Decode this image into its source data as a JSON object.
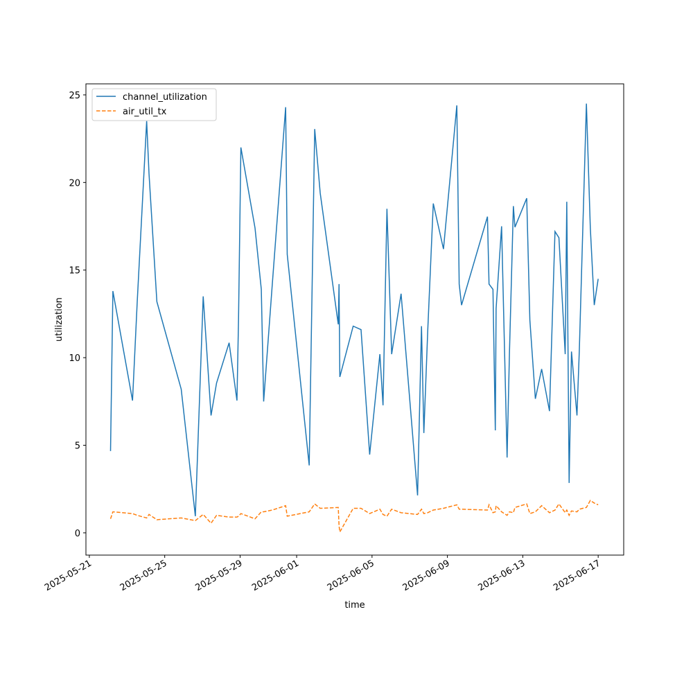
{
  "chart_data": {
    "type": "line",
    "x_label": "time",
    "y_label": "utilization",
    "x": [
      "2025-05-22T03:00",
      "2025-05-22T06:00",
      "2025-05-23T07:00",
      "2025-05-23T13:00",
      "2025-05-24T01:00",
      "2025-05-24T04:00",
      "2025-05-24T14:00",
      "2025-05-25T21:00",
      "2025-05-26T15:00",
      "2025-05-27T01:00",
      "2025-05-27T11:00",
      "2025-05-27T18:00",
      "2025-05-28T10:00",
      "2025-05-28T20:00",
      "2025-05-28T22:00",
      "2025-05-29T01:00",
      "2025-05-29T19:00",
      "2025-05-30T03:00",
      "2025-05-30T06:00",
      "2025-05-30T17:00",
      "2025-05-31T10:00",
      "2025-05-31T12:00",
      "2025-06-01T16:00",
      "2025-06-01T23:00",
      "2025-06-02T06:00",
      "2025-06-03T05:00",
      "2025-06-03T06:00",
      "2025-06-03T07:00",
      "2025-06-04T00:00",
      "2025-06-04T10:00",
      "2025-06-04T21:00",
      "2025-06-05T10:00",
      "2025-06-05T14:00",
      "2025-06-05T19:00",
      "2025-06-06T01:00",
      "2025-06-06T13:00",
      "2025-06-07T10:00",
      "2025-06-07T15:00",
      "2025-06-07T18:00",
      "2025-06-07T23:00",
      "2025-06-08T06:00",
      "2025-06-08T19:00",
      "2025-06-09T12:00",
      "2025-06-09T15:00",
      "2025-06-09T18:00",
      "2025-06-11T03:00",
      "2025-06-11T05:00",
      "2025-06-11T10:00",
      "2025-06-11T13:00",
      "2025-06-11T14:00",
      "2025-06-11T21:00",
      "2025-06-12T04:00",
      "2025-06-12T07:00",
      "2025-06-12T12:00",
      "2025-06-12T14:00",
      "2025-06-13T05:00",
      "2025-06-13T09:00",
      "2025-06-13T16:00",
      "2025-06-14T00:00",
      "2025-06-14T10:00",
      "2025-06-14T17:00",
      "2025-06-14T22:00",
      "2025-06-15T06:00",
      "2025-06-15T08:00",
      "2025-06-15T11:00",
      "2025-06-15T14:00",
      "2025-06-15T21:00",
      "2025-06-16T00:00",
      "2025-06-16T09:00",
      "2025-06-16T14:00",
      "2025-06-16T19:00",
      "2025-06-17T00:00"
    ],
    "series": [
      {
        "name": "channel_utilization",
        "color": "#1f77b4",
        "linestyle": "solid",
        "values": [
          4.67,
          13.8,
          7.55,
          13.2,
          23.5,
          20.5,
          13.2,
          8.2,
          0.95,
          13.5,
          6.7,
          8.55,
          10.85,
          7.55,
          12.2,
          22.0,
          17.4,
          13.9,
          7.5,
          14.2,
          24.3,
          15.9,
          3.85,
          23.05,
          19.4,
          11.9,
          14.2,
          8.9,
          11.8,
          11.6,
          4.47,
          10.2,
          7.28,
          18.5,
          10.2,
          13.65,
          2.14,
          11.8,
          5.7,
          11.6,
          18.8,
          16.2,
          24.4,
          14.2,
          13.0,
          18.05,
          14.2,
          13.9,
          5.85,
          12.8,
          17.5,
          4.3,
          10.25,
          18.65,
          17.45,
          19.1,
          12.15,
          7.65,
          9.35,
          6.95,
          17.2,
          16.85,
          10.2,
          18.9,
          2.85,
          10.35,
          6.7,
          10.45,
          24.5,
          17.4,
          13.0,
          14.5
        ]
      },
      {
        "name": "air_util_tx",
        "color": "#ff7f0e",
        "linestyle": "dashed",
        "values": [
          0.8,
          1.2,
          1.1,
          1.0,
          0.85,
          1.05,
          0.75,
          0.85,
          0.7,
          1.05,
          0.55,
          1.0,
          0.9,
          0.9,
          0.95,
          1.1,
          0.8,
          1.2,
          1.2,
          1.3,
          1.55,
          0.95,
          1.2,
          1.65,
          1.4,
          1.45,
          0.4,
          0.05,
          1.4,
          1.4,
          1.1,
          1.35,
          1.05,
          0.95,
          1.35,
          1.15,
          1.05,
          1.35,
          1.1,
          1.15,
          1.3,
          1.4,
          1.6,
          1.35,
          1.35,
          1.3,
          1.6,
          1.15,
          1.2,
          1.55,
          1.2,
          1.0,
          1.2,
          1.15,
          1.45,
          1.65,
          1.1,
          1.2,
          1.55,
          1.15,
          1.3,
          1.65,
          1.15,
          1.3,
          1.0,
          1.25,
          1.2,
          1.35,
          1.45,
          1.85,
          1.7,
          1.6
        ]
      }
    ],
    "xlim": [
      "2025-05-20T19:40",
      "2025-06-18T08:30"
    ],
    "xticks": [
      "2025-05-21",
      "2025-05-25",
      "2025-05-29",
      "2025-06-01",
      "2025-06-05",
      "2025-06-09",
      "2025-06-13",
      "2025-06-17"
    ],
    "ylim": [
      -1.27,
      25.63
    ],
    "yticks": [
      0,
      5,
      10,
      15,
      20,
      25
    ],
    "grid": false,
    "legend": "upper-left"
  }
}
